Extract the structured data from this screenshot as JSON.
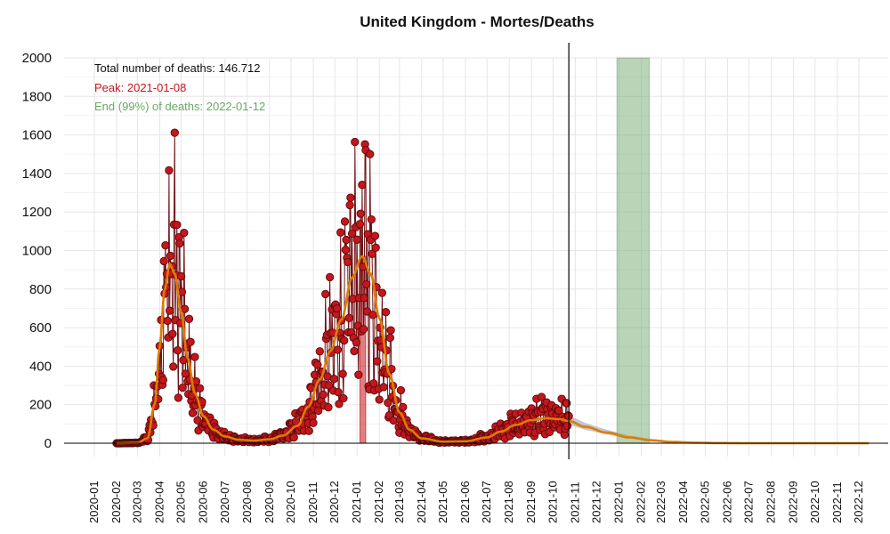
{
  "chart_data": {
    "type": "line",
    "title": "United Kingdom - Mortes/Deaths",
    "xlabel": "",
    "ylabel": "",
    "ylim": [
      0,
      2000
    ],
    "xlim": [
      "2020-01-01",
      "2022-12-31"
    ],
    "yticks": [
      0,
      200,
      400,
      600,
      800,
      1000,
      1200,
      1400,
      1600,
      1800,
      2000
    ],
    "xticks": [
      "2020-01",
      "2020-02",
      "2020-03",
      "2020-04",
      "2020-05",
      "2020-06",
      "2020-07",
      "2020-08",
      "2020-09",
      "2020-10",
      "2020-11",
      "2020-12",
      "2021-01",
      "2021-02",
      "2021-03",
      "2021-04",
      "2021-05",
      "2021-06",
      "2021-07",
      "2021-08",
      "2021-09",
      "2021-10",
      "2021-11",
      "2021-12",
      "2022-01",
      "2022-02",
      "2022-03",
      "2022-04",
      "2022-05",
      "2022-06",
      "2022-07",
      "2022-08",
      "2022-09",
      "2022-10",
      "2022-11",
      "2022-12"
    ],
    "grid": true,
    "annotations": {
      "total": "Total number of deaths: 146.712",
      "peak": "Peak: 2021-01-08",
      "end": "End (99%) of deaths: 2022-01-12"
    },
    "colors": {
      "points": "#c4161c",
      "point_edge": "#5a0a0a",
      "fit": "#e07b00",
      "peak_band": "#c4161c",
      "end_band": "#7fb07a",
      "forecast_band": "#a9b6c4",
      "total_text": "#111111",
      "peak_text": "#c4161c",
      "end_text": "#6aa865"
    },
    "observed_end": "2021-10-23",
    "peak_band": {
      "start": "2021-01-05",
      "end": "2021-01-13",
      "value": 970
    },
    "end_band": {
      "start": "2021-12-29",
      "end": "2022-02-12"
    },
    "fit_curve": [
      [
        "2020-02-01",
        0
      ],
      [
        "2020-03-01",
        2
      ],
      [
        "2020-03-15",
        25
      ],
      [
        "2020-03-25",
        200
      ],
      [
        "2020-04-01",
        500
      ],
      [
        "2020-04-08",
        800
      ],
      [
        "2020-04-15",
        930
      ],
      [
        "2020-04-22",
        880
      ],
      [
        "2020-05-01",
        680
      ],
      [
        "2020-05-10",
        440
      ],
      [
        "2020-05-20",
        260
      ],
      [
        "2020-06-01",
        140
      ],
      [
        "2020-06-15",
        70
      ],
      [
        "2020-07-01",
        35
      ],
      [
        "2020-07-20",
        18
      ],
      [
        "2020-08-10",
        14
      ],
      [
        "2020-09-01",
        20
      ],
      [
        "2020-09-20",
        40
      ],
      [
        "2020-10-10",
        90
      ],
      [
        "2020-10-25",
        190
      ],
      [
        "2020-11-10",
        330
      ],
      [
        "2020-11-25",
        480
      ],
      [
        "2020-12-10",
        640
      ],
      [
        "2020-12-25",
        860
      ],
      [
        "2021-01-08",
        970
      ],
      [
        "2021-01-20",
        880
      ],
      [
        "2021-02-01",
        650
      ],
      [
        "2021-02-15",
        360
      ],
      [
        "2021-03-01",
        160
      ],
      [
        "2021-03-15",
        70
      ],
      [
        "2021-04-01",
        25
      ],
      [
        "2021-05-01",
        8
      ],
      [
        "2021-06-01",
        10
      ],
      [
        "2021-07-01",
        30
      ],
      [
        "2021-07-20",
        60
      ],
      [
        "2021-08-10",
        95
      ],
      [
        "2021-09-01",
        120
      ],
      [
        "2021-09-20",
        130
      ],
      [
        "2021-10-10",
        125
      ],
      [
        "2021-10-23",
        115
      ],
      [
        "2021-11-15",
        85
      ],
      [
        "2021-12-15",
        55
      ],
      [
        "2022-01-15",
        30
      ],
      [
        "2022-02-15",
        15
      ],
      [
        "2022-03-15",
        7
      ],
      [
        "2022-04-15",
        3
      ],
      [
        "2022-05-15",
        1
      ],
      [
        "2022-07-01",
        0
      ],
      [
        "2022-12-31",
        0
      ]
    ],
    "forecast_band_points": [
      [
        "2021-10-23",
        95,
        145
      ],
      [
        "2021-11-15",
        70,
        105
      ],
      [
        "2021-12-15",
        45,
        70
      ],
      [
        "2022-01-15",
        24,
        40
      ],
      [
        "2022-02-15",
        10,
        22
      ],
      [
        "2022-03-15",
        4,
        11
      ],
      [
        "2022-04-15",
        1,
        5
      ],
      [
        "2022-05-15",
        0,
        2
      ],
      [
        "2022-07-01",
        0,
        0
      ]
    ]
  }
}
